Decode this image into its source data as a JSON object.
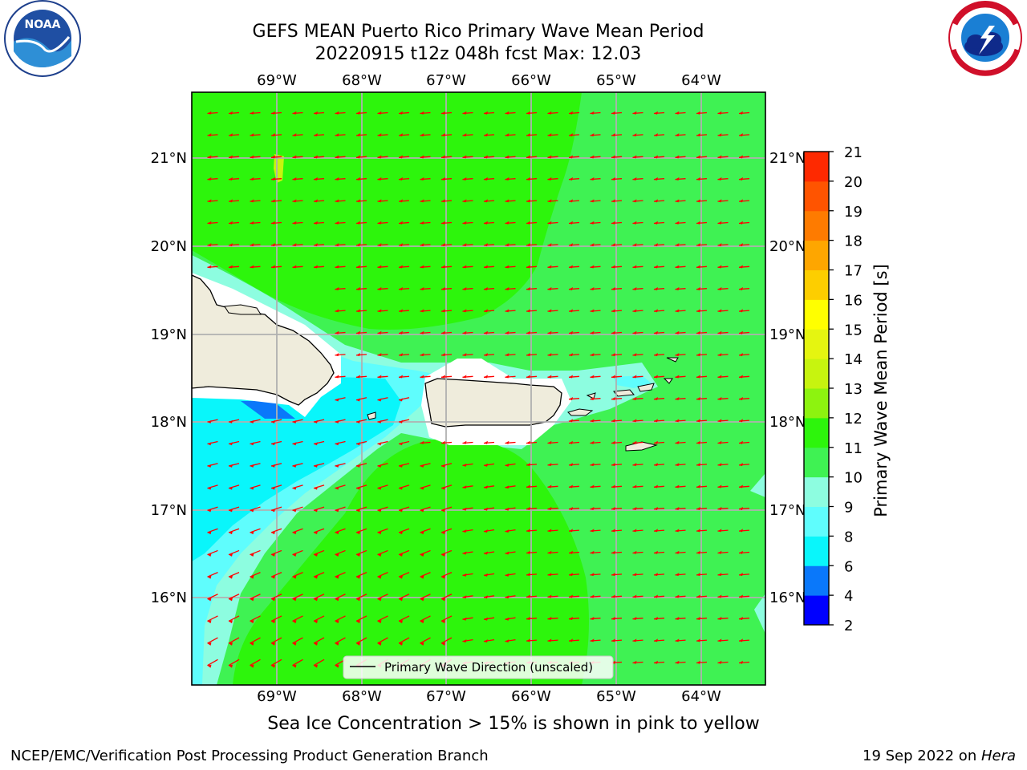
{
  "header": {
    "title_line1": "GEFS MEAN Puerto Rico Primary Wave Mean Period",
    "title_line2": "20220915 t12z 048h fcst   Max: 12.03"
  },
  "logos": {
    "left": {
      "name": "NOAA",
      "ring_text": "NATIONAL OCEANIC AND ATMOSPHERIC ADMINISTRATION · U.S. DEPARTMENT OF COMMERCE"
    },
    "right": {
      "ring_text": "NATIONAL WEATHER SERVICE"
    }
  },
  "map": {
    "lon_labels": [
      "69°W",
      "68°W",
      "67°W",
      "66°W",
      "65°W",
      "64°W"
    ],
    "lat_labels": [
      "21°N",
      "20°N",
      "19°N",
      "18°N",
      "17°N",
      "16°N"
    ],
    "legend_label": "Primary Wave Direction (unscaled)",
    "colors": {
      "land": "#efecdc",
      "green_mid": "#3ff253",
      "green_bright": "#2df50c",
      "cyan_light": "#8dfde0",
      "cyan": "#5ffdfd",
      "cyan_bright": "#09f6fb",
      "arrow": "#ff0000"
    }
  },
  "colorbar": {
    "title": "Primary Wave Mean Period [s]",
    "ticks": [
      "2",
      "4",
      "6",
      "8",
      "9",
      "10",
      "11",
      "12",
      "13",
      "14",
      "15",
      "16",
      "17",
      "18",
      "19",
      "20",
      "21"
    ],
    "colors": [
      "#0000ff",
      "#0a78fa",
      "#09f6fb",
      "#5ffdfd",
      "#8dfde0",
      "#3ff253",
      "#2df50c",
      "#8df30f",
      "#c7f40f",
      "#e5f510",
      "#ffff00",
      "#fdce00",
      "#fea600",
      "#fe7b00",
      "#ff5400",
      "#fe2900"
    ]
  },
  "footer": {
    "note": "Sea Ice Concentration > 15% is shown in pink to yellow",
    "left": "NCEP/EMC/Verification Post Processing Product Generation Branch",
    "right_date": "19 Sep 2022 on ",
    "right_host": "Hera"
  }
}
